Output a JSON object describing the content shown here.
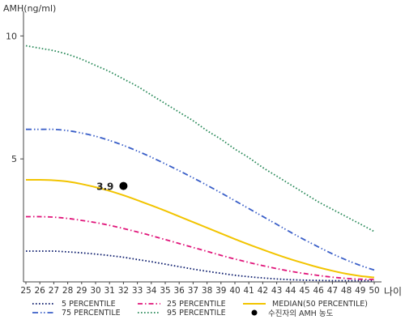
{
  "chart_data": {
    "type": "line",
    "title": "",
    "ylabel": "AMH(ng/ml)",
    "xlabel": "나이",
    "xlim": [
      25,
      50
    ],
    "ylim": [
      0,
      11
    ],
    "yticks": [
      5,
      10
    ],
    "x": [
      25,
      26,
      27,
      28,
      29,
      30,
      31,
      32,
      33,
      34,
      35,
      36,
      37,
      38,
      39,
      40,
      41,
      42,
      43,
      44,
      45,
      46,
      47,
      48,
      49,
      50
    ],
    "grid": false,
    "legend_position": "bottom",
    "series": [
      {
        "name": "5 PERCENTILE",
        "color": "#0a1a6b",
        "dash": "dotted",
        "values": [
          1.25,
          1.25,
          1.25,
          1.22,
          1.18,
          1.13,
          1.07,
          1.0,
          0.91,
          0.82,
          0.72,
          0.62,
          0.52,
          0.43,
          0.35,
          0.27,
          0.21,
          0.16,
          0.12,
          0.09,
          0.07,
          0.06,
          0.05,
          0.05,
          0.05,
          0.05
        ]
      },
      {
        "name": "25 PERCENTILE",
        "color": "#e0157a",
        "dash": "dashdot",
        "values": [
          2.65,
          2.65,
          2.63,
          2.58,
          2.5,
          2.41,
          2.3,
          2.17,
          2.03,
          1.88,
          1.72,
          1.56,
          1.4,
          1.24,
          1.08,
          0.93,
          0.79,
          0.66,
          0.54,
          0.43,
          0.34,
          0.26,
          0.19,
          0.14,
          0.11,
          0.1
        ]
      },
      {
        "name": "MEDIAN(50 PERCENTILE)",
        "color": "#f2c400",
        "dash": "solid",
        "values": [
          4.15,
          4.15,
          4.13,
          4.08,
          3.98,
          3.85,
          3.7,
          3.52,
          3.32,
          3.11,
          2.89,
          2.66,
          2.43,
          2.2,
          1.97,
          1.74,
          1.52,
          1.31,
          1.11,
          0.92,
          0.75,
          0.59,
          0.45,
          0.33,
          0.24,
          0.18
        ]
      },
      {
        "name": "75 PERCENTILE",
        "color": "#3a5fc8",
        "dash": "dashdotdot",
        "values": [
          6.2,
          6.2,
          6.2,
          6.15,
          6.05,
          5.92,
          5.75,
          5.55,
          5.32,
          5.07,
          4.8,
          4.52,
          4.23,
          3.93,
          3.62,
          3.3,
          2.98,
          2.66,
          2.34,
          2.02,
          1.71,
          1.42,
          1.14,
          0.89,
          0.67,
          0.48
        ]
      },
      {
        "name": "95 PERCENTILE",
        "color": "#2a8a5a",
        "dash": "dotted",
        "values": [
          9.6,
          9.5,
          9.4,
          9.25,
          9.05,
          8.8,
          8.55,
          8.25,
          7.95,
          7.6,
          7.25,
          6.9,
          6.55,
          6.15,
          5.8,
          5.4,
          5.05,
          4.65,
          4.3,
          3.95,
          3.6,
          3.25,
          2.95,
          2.65,
          2.35,
          2.05
        ]
      }
    ],
    "points": [
      {
        "name": "수진자의 AMH 농도",
        "x": 32,
        "y": 3.9,
        "label": "3.9",
        "color": "#000000"
      }
    ]
  }
}
